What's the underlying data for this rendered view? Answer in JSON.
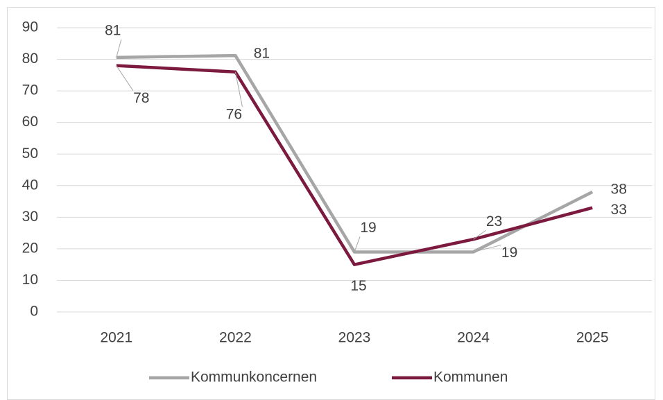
{
  "chart_data": {
    "type": "line",
    "categories": [
      "2021",
      "2022",
      "2023",
      "2024",
      "2025"
    ],
    "series": [
      {
        "name": "Kommunkoncernen",
        "color": "#a6a6a6",
        "values": [
          80.6,
          81.2,
          19,
          19,
          38
        ],
        "value_labels": [
          "81",
          "81",
          "19",
          "19",
          "38"
        ]
      },
      {
        "name": "Kommunen",
        "color": "#7b1a3e",
        "values": [
          78,
          76,
          15,
          23,
          33
        ]
      }
    ],
    "ylim": [
      0,
      90
    ],
    "yticks": [
      0,
      10,
      20,
      30,
      40,
      50,
      60,
      70,
      80,
      90
    ],
    "grid": true,
    "legend": "bottom"
  }
}
